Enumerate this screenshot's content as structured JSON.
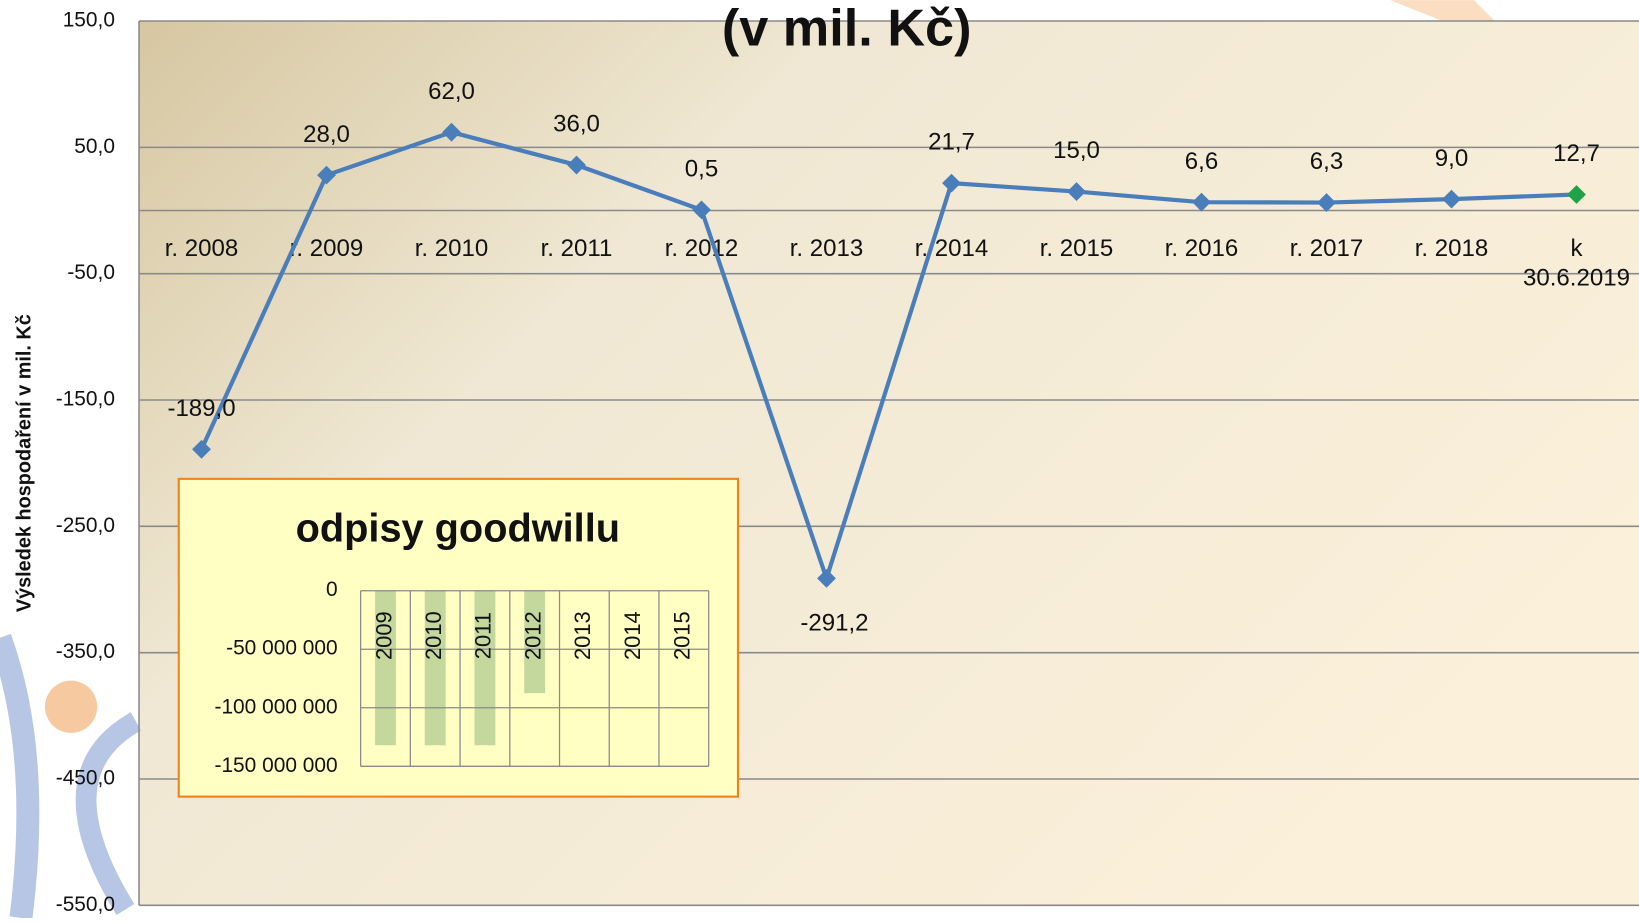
{
  "chart_data": [
    {
      "type": "line",
      "title": "(v mil. Kč)",
      "y_label": "Výsledek hospodaření v mil. Kč",
      "categories": [
        "r. 2008",
        "r. 2009",
        "r. 2010",
        "r. 2011",
        "r. 2012",
        "r. 2013",
        "r. 2014",
        "r. 2015",
        "r. 2016",
        "r. 2017",
        "r. 2018",
        "k 30.6.2019"
      ],
      "series": [
        {
          "color": "#4a7ebb",
          "values": [
            -189.0,
            28.0,
            62.0,
            36.0,
            0.5,
            -291.2,
            21.7,
            15.0,
            6.6,
            6.3,
            9.0,
            12.7
          ],
          "value_labels": [
            "-189,0",
            "28,0",
            "62,0",
            "36,0",
            "0,5",
            "-291,2",
            "21,7",
            "15,0",
            "6,6",
            "6,3",
            "9,0",
            "12,7"
          ],
          "marker_colors": [
            "#4a7ebb",
            "#4a7ebb",
            "#4a7ebb",
            "#4a7ebb",
            "#4a7ebb",
            "#4a7ebb",
            "#4a7ebb",
            "#4a7ebb",
            "#4a7ebb",
            "#4a7ebb",
            "#4a7ebb",
            "#1fa347"
          ]
        }
      ],
      "ylim": [
        -550,
        150
      ],
      "yticks": [
        {
          "value": 150,
          "label": "150,0"
        },
        {
          "value": 50,
          "label": "50,0"
        },
        {
          "value": -50,
          "label": "-50,0"
        },
        {
          "value": -150,
          "label": "-150,0"
        },
        {
          "value": -250,
          "label": "-250,0"
        },
        {
          "value": -350,
          "label": "-350,0"
        },
        {
          "value": -450,
          "label": "-450,0"
        },
        {
          "value": -550,
          "label": "-550,0"
        }
      ],
      "grid": true
    },
    {
      "type": "bar",
      "title": "odpisy goodwillu",
      "categories": [
        "2009",
        "2010",
        "2011",
        "2012",
        "2013",
        "2014",
        "2015"
      ],
      "values": [
        -132000000,
        -132000000,
        -132000000,
        -87500000,
        0,
        0,
        0
      ],
      "color": "#c4d89e",
      "ylim": [
        -150000000,
        0
      ],
      "yticks": [
        0,
        {
          "value": -50000000,
          "label": "-50 000 000"
        },
        {
          "value": -100000000,
          "label": "-100 000 000"
        },
        {
          "value": -150000000,
          "label": "-150 000 000"
        }
      ],
      "grid": true
    }
  ]
}
